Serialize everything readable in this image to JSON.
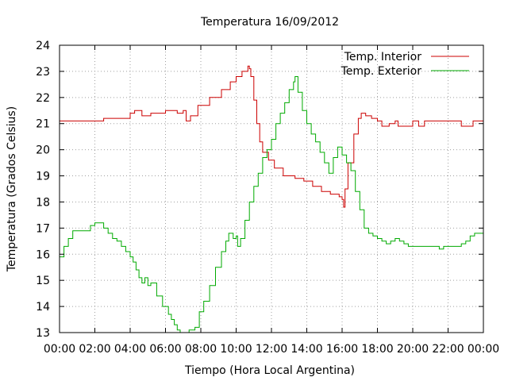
{
  "chart_data": {
    "type": "line",
    "title": "Temperatura 16/09/2012",
    "xlabel": "Tiempo (Hora Local Argentina)",
    "ylabel": "Temperatura (Grados Celsius)",
    "xlim": [
      "00:00",
      "24:00"
    ],
    "ylim": [
      13,
      24
    ],
    "xticks": [
      "00:00",
      "02:00",
      "04:00",
      "06:00",
      "08:00",
      "10:00",
      "12:00",
      "14:00",
      "16:00",
      "18:00",
      "20:00",
      "22:00",
      "00:00"
    ],
    "yticks": [
      13,
      14,
      15,
      16,
      17,
      18,
      19,
      20,
      21,
      22,
      23,
      24
    ],
    "grid": true,
    "legend_position": "top-right",
    "series": [
      {
        "name": "Temp. Interior",
        "color": "#cc0000",
        "points": [
          [
            "00:00",
            21.1
          ],
          [
            "02:24",
            21.1
          ],
          [
            "02:30",
            21.2
          ],
          [
            "03:30",
            21.2
          ],
          [
            "04:00",
            21.4
          ],
          [
            "04:15",
            21.5
          ],
          [
            "04:40",
            21.3
          ],
          [
            "05:10",
            21.4
          ],
          [
            "05:50",
            21.4
          ],
          [
            "06:00",
            21.5
          ],
          [
            "06:40",
            21.4
          ],
          [
            "07:00",
            21.5
          ],
          [
            "07:10",
            21.1
          ],
          [
            "07:25",
            21.3
          ],
          [
            "07:50",
            21.7
          ],
          [
            "08:30",
            22.0
          ],
          [
            "09:10",
            22.3
          ],
          [
            "09:40",
            22.6
          ],
          [
            "10:00",
            22.8
          ],
          [
            "10:20",
            23.0
          ],
          [
            "10:40",
            23.2
          ],
          [
            "10:45",
            23.1
          ],
          [
            "10:50",
            22.8
          ],
          [
            "11:00",
            21.9
          ],
          [
            "11:10",
            21.0
          ],
          [
            "11:20",
            20.3
          ],
          [
            "11:30",
            19.9
          ],
          [
            "11:50",
            19.6
          ],
          [
            "12:10",
            19.3
          ],
          [
            "12:40",
            19.0
          ],
          [
            "13:20",
            18.9
          ],
          [
            "13:50",
            18.8
          ],
          [
            "14:20",
            18.6
          ],
          [
            "14:50",
            18.4
          ],
          [
            "15:20",
            18.3
          ],
          [
            "15:50",
            18.2
          ],
          [
            "16:00",
            18.1
          ],
          [
            "16:05",
            17.8
          ],
          [
            "16:10",
            18.5
          ],
          [
            "16:20",
            19.5
          ],
          [
            "16:40",
            20.6
          ],
          [
            "16:55",
            21.2
          ],
          [
            "17:05",
            21.4
          ],
          [
            "17:20",
            21.3
          ],
          [
            "17:40",
            21.2
          ],
          [
            "18:00",
            21.1
          ],
          [
            "18:15",
            20.9
          ],
          [
            "18:40",
            21.0
          ],
          [
            "19:00",
            21.1
          ],
          [
            "19:10",
            20.9
          ],
          [
            "19:40",
            20.9
          ],
          [
            "20:00",
            21.1
          ],
          [
            "20:20",
            20.9
          ],
          [
            "20:40",
            21.1
          ],
          [
            "21:00",
            21.1
          ],
          [
            "21:30",
            21.1
          ],
          [
            "22:00",
            21.1
          ],
          [
            "22:40",
            21.1
          ],
          [
            "22:45",
            20.9
          ],
          [
            "23:15",
            20.9
          ],
          [
            "23:25",
            21.1
          ],
          [
            "23:50",
            21.1
          ],
          [
            "24:00",
            20.9
          ]
        ]
      },
      {
        "name": "Temp. Exterior",
        "color": "#00aa00",
        "points": [
          [
            "00:00",
            15.9
          ],
          [
            "00:15",
            16.3
          ],
          [
            "00:30",
            16.6
          ],
          [
            "00:45",
            16.9
          ],
          [
            "01:30",
            16.9
          ],
          [
            "01:45",
            17.1
          ],
          [
            "02:00",
            17.2
          ],
          [
            "02:15",
            17.2
          ],
          [
            "02:30",
            17.0
          ],
          [
            "02:45",
            16.8
          ],
          [
            "03:00",
            16.6
          ],
          [
            "03:15",
            16.5
          ],
          [
            "03:30",
            16.3
          ],
          [
            "03:45",
            16.1
          ],
          [
            "04:00",
            15.9
          ],
          [
            "04:10",
            15.7
          ],
          [
            "04:20",
            15.4
          ],
          [
            "04:30",
            15.1
          ],
          [
            "04:40",
            14.9
          ],
          [
            "04:50",
            15.1
          ],
          [
            "05:00",
            14.8
          ],
          [
            "05:10",
            14.9
          ],
          [
            "05:30",
            14.4
          ],
          [
            "05:50",
            14.0
          ],
          [
            "06:10",
            13.7
          ],
          [
            "06:20",
            13.5
          ],
          [
            "06:30",
            13.3
          ],
          [
            "06:40",
            13.1
          ],
          [
            "06:50",
            13.0
          ],
          [
            "07:10",
            13.0
          ],
          [
            "07:20",
            13.1
          ],
          [
            "07:40",
            13.2
          ],
          [
            "07:55",
            13.8
          ],
          [
            "08:10",
            14.2
          ],
          [
            "08:30",
            14.8
          ],
          [
            "08:50",
            15.5
          ],
          [
            "09:10",
            16.1
          ],
          [
            "09:25",
            16.5
          ],
          [
            "09:35",
            16.8
          ],
          [
            "09:50",
            16.6
          ],
          [
            "10:00",
            16.7
          ],
          [
            "10:05",
            16.3
          ],
          [
            "10:15",
            16.6
          ],
          [
            "10:30",
            17.3
          ],
          [
            "10:45",
            18.0
          ],
          [
            "11:00",
            18.6
          ],
          [
            "11:15",
            19.1
          ],
          [
            "11:30",
            19.7
          ],
          [
            "11:45",
            20.0
          ],
          [
            "12:00",
            20.4
          ],
          [
            "12:15",
            21.0
          ],
          [
            "12:30",
            21.4
          ],
          [
            "12:45",
            21.8
          ],
          [
            "13:00",
            22.3
          ],
          [
            "13:15",
            22.6
          ],
          [
            "13:20",
            22.8
          ],
          [
            "13:30",
            22.2
          ],
          [
            "13:45",
            21.5
          ],
          [
            "14:00",
            21.0
          ],
          [
            "14:15",
            20.6
          ],
          [
            "14:30",
            20.3
          ],
          [
            "14:45",
            19.9
          ],
          [
            "15:00",
            19.5
          ],
          [
            "15:15",
            19.1
          ],
          [
            "15:30",
            19.7
          ],
          [
            "15:45",
            20.1
          ],
          [
            "16:00",
            19.8
          ],
          [
            "16:15",
            19.5
          ],
          [
            "16:30",
            19.2
          ],
          [
            "16:45",
            18.4
          ],
          [
            "17:00",
            17.7
          ],
          [
            "17:15",
            17.0
          ],
          [
            "17:30",
            16.8
          ],
          [
            "17:45",
            16.7
          ],
          [
            "18:00",
            16.6
          ],
          [
            "18:15",
            16.5
          ],
          [
            "18:30",
            16.4
          ],
          [
            "18:45",
            16.5
          ],
          [
            "19:00",
            16.6
          ],
          [
            "19:15",
            16.5
          ],
          [
            "19:30",
            16.4
          ],
          [
            "19:45",
            16.3
          ],
          [
            "20:00",
            16.3
          ],
          [
            "20:30",
            16.3
          ],
          [
            "21:00",
            16.3
          ],
          [
            "21:30",
            16.2
          ],
          [
            "21:45",
            16.3
          ],
          [
            "22:00",
            16.3
          ],
          [
            "22:30",
            16.3
          ],
          [
            "22:45",
            16.4
          ],
          [
            "23:00",
            16.5
          ],
          [
            "23:15",
            16.7
          ],
          [
            "23:30",
            16.8
          ],
          [
            "23:45",
            16.8
          ],
          [
            "24:00",
            16.7
          ]
        ]
      }
    ]
  }
}
